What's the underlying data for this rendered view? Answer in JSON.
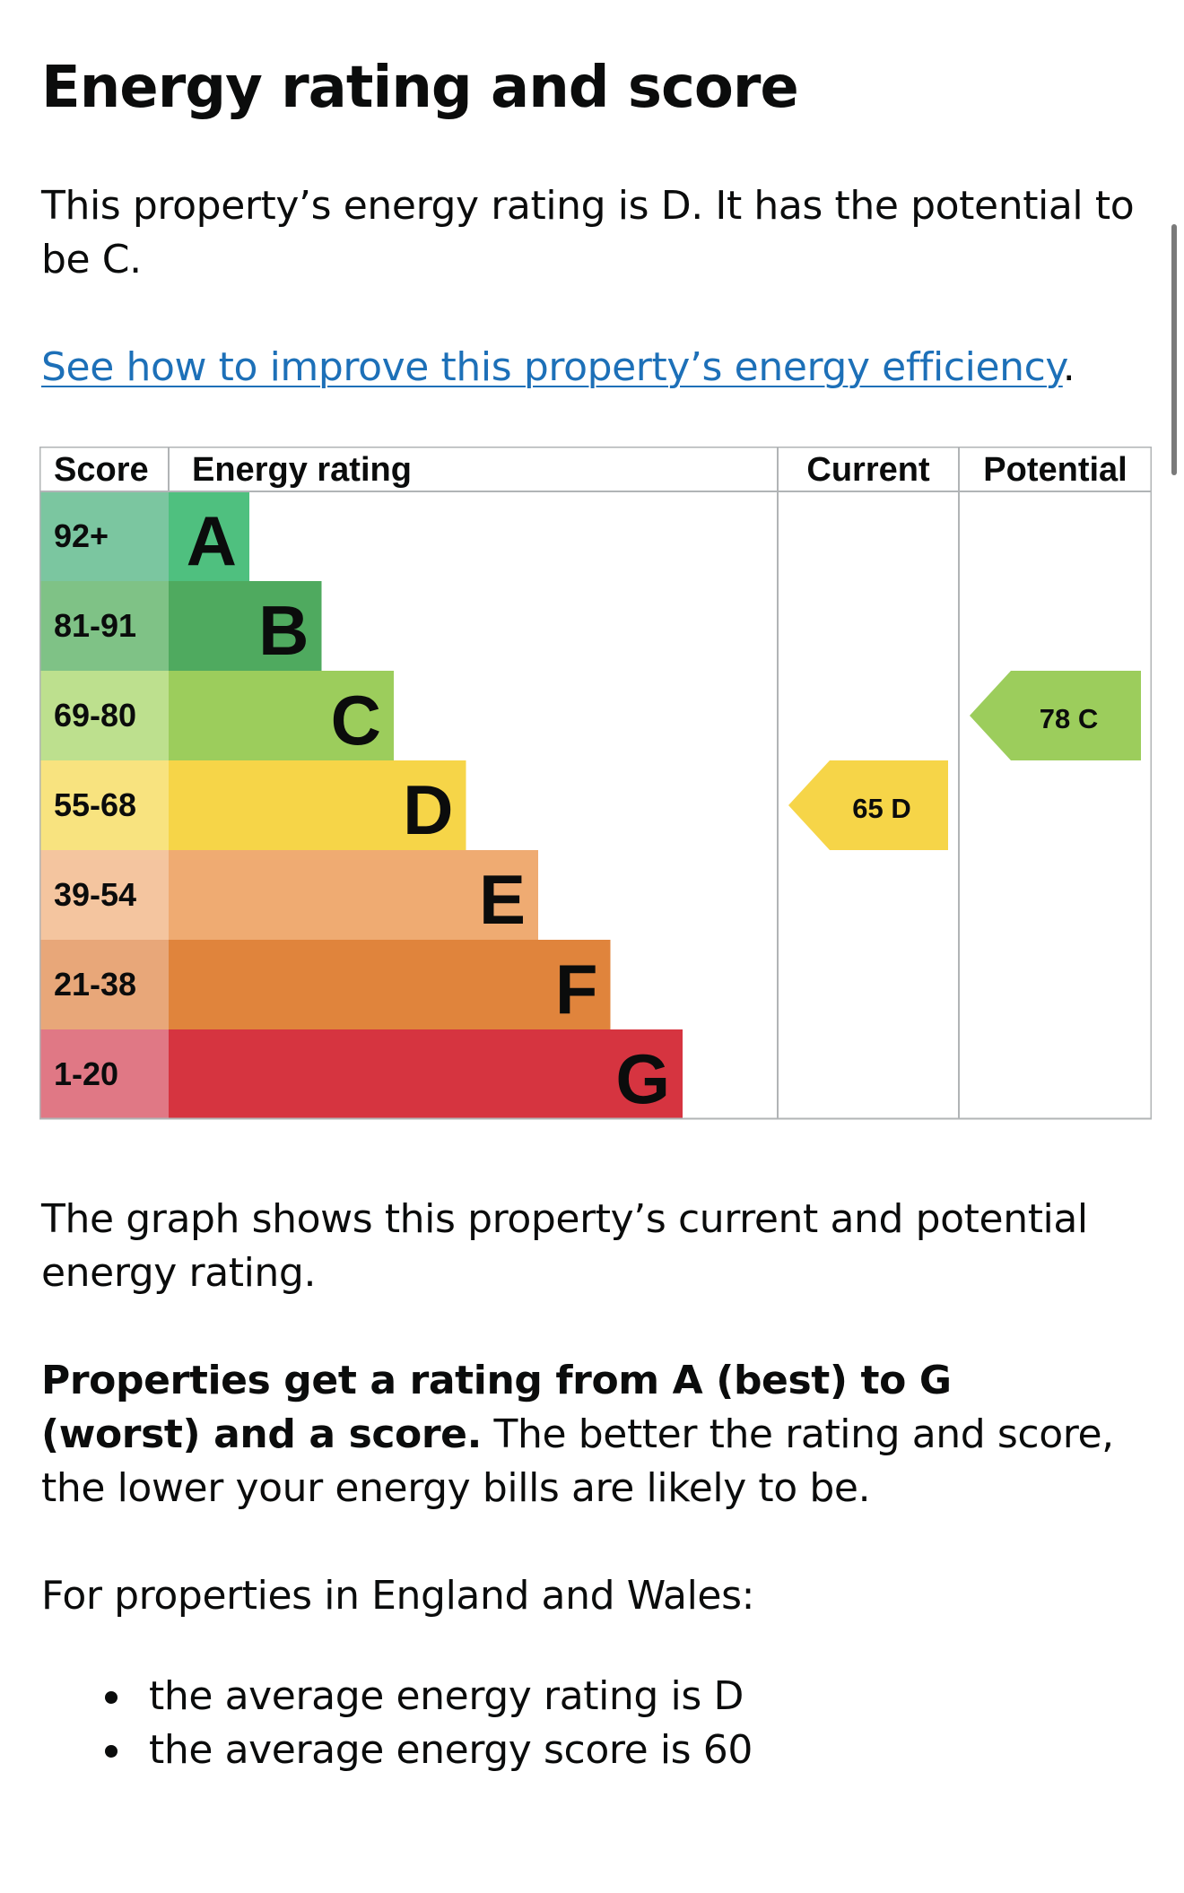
{
  "page": {
    "title": "Energy rating and score",
    "intro": "This property’s energy rating is D. It has the potential to be C.",
    "link_text": "See how to improve this property’s energy efficiency",
    "link_suffix": ".",
    "graph_description": "The graph shows this property’s current and potential energy rating.",
    "properties_bold": "Properties get a rating from A (best) to G (worst) and a score.",
    "properties_rest": " The better the rating and score, the lower your energy bills are likely to be.",
    "england_wales": "For properties in England and Wales:",
    "averages": [
      "the average energy rating is D",
      "the average energy score is 60"
    ]
  },
  "chart_data": {
    "type": "bar",
    "headers": [
      "Score",
      "Energy rating",
      "Current",
      "Potential"
    ],
    "bands": [
      {
        "letter": "A",
        "range": "92+",
        "bar_color": "#4fc07f",
        "score_color": "#7bc6a0"
      },
      {
        "letter": "B",
        "range": "81-91",
        "bar_color": "#4faa5f",
        "score_color": "#7fc286"
      },
      {
        "letter": "C",
        "range": "69-80",
        "bar_color": "#9ccd5c",
        "score_color": "#bde08e"
      },
      {
        "letter": "D",
        "range": "55-68",
        "bar_color": "#f6d548",
        "score_color": "#f8e37f"
      },
      {
        "letter": "E",
        "range": "39-54",
        "bar_color": "#efab72",
        "score_color": "#f4c59f"
      },
      {
        "letter": "F",
        "range": "21-38",
        "bar_color": "#e0843c",
        "score_color": "#e8a779"
      },
      {
        "letter": "G",
        "range": "1-20",
        "bar_color": "#d63440",
        "score_color": "#e07885"
      }
    ],
    "current": {
      "score": 65,
      "band": "D",
      "color": "#f6d548"
    },
    "potential": {
      "score": 78,
      "band": "C",
      "color": "#9ccd5c"
    }
  }
}
